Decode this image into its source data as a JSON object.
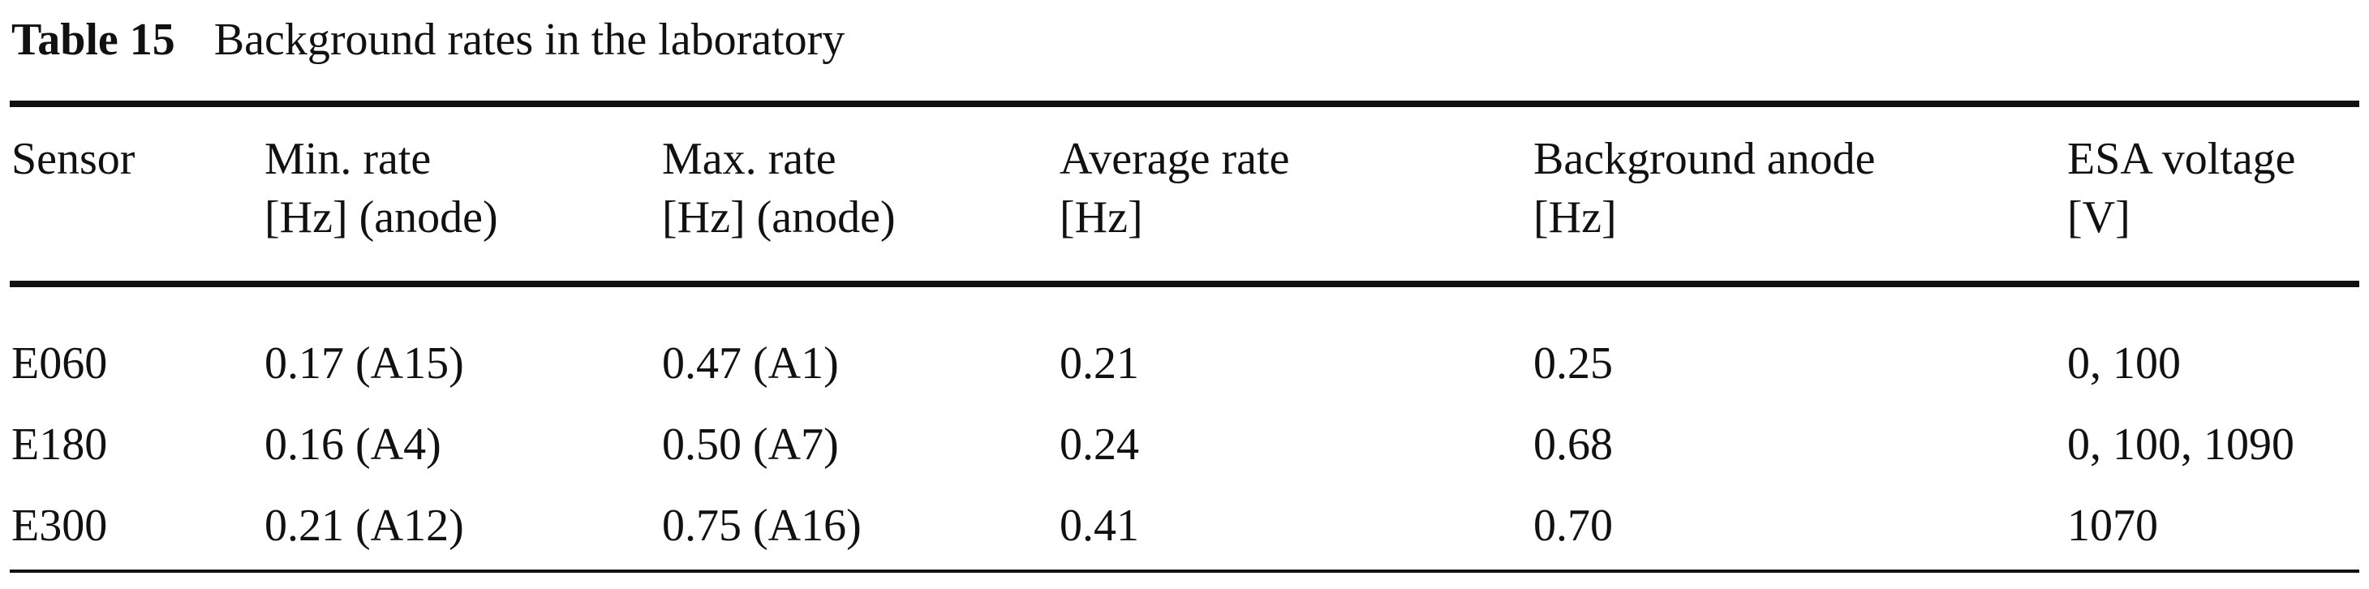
{
  "caption": {
    "label": "Table 15",
    "title": "Background rates in the laboratory"
  },
  "columns": [
    {
      "line1": "Sensor",
      "line2": ""
    },
    {
      "line1": "Min. rate",
      "line2": "[Hz] (anode)"
    },
    {
      "line1": "Max. rate",
      "line2": "[Hz] (anode)"
    },
    {
      "line1": "Average rate",
      "line2": "[Hz]"
    },
    {
      "line1": "Background anode",
      "line2": "[Hz]"
    },
    {
      "line1": "ESA voltage",
      "line2": "[V]"
    }
  ],
  "rows": [
    [
      "E060",
      "0.17 (A15)",
      "0.47 (A1)",
      "0.21",
      "0.25",
      "0, 100"
    ],
    [
      "E180",
      "0.16 (A4)",
      "0.50 (A7)",
      "0.24",
      "0.68",
      "0, 100, 1090"
    ],
    [
      "E300",
      "0.21 (A12)",
      "0.75 (A16)",
      "0.41",
      "0.70",
      "1070"
    ]
  ]
}
